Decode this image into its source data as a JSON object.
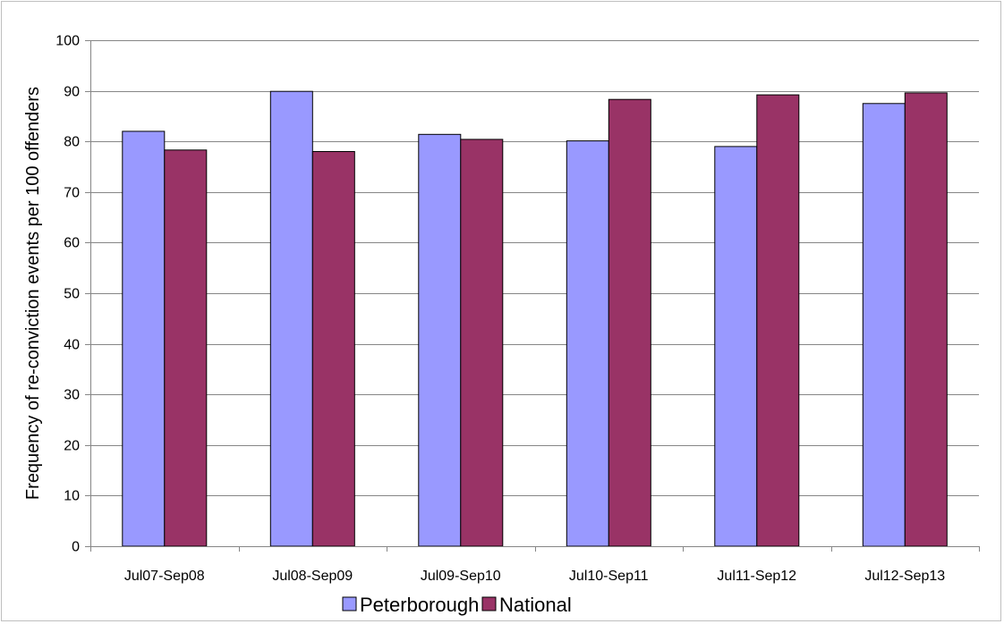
{
  "chart_data": {
    "type": "bar",
    "ylabel": "Frequency of re-conviction events per 100 offenders",
    "xlabel": "",
    "ylim": [
      0,
      100
    ],
    "yticks": [
      0,
      10,
      20,
      30,
      40,
      50,
      60,
      70,
      80,
      90,
      100
    ],
    "grid": true,
    "legend_position": "bottom",
    "categories": [
      "Jul07-Sep08",
      "Jul08-Sep09",
      "Jul09-Sep10",
      "Jul10-Sep11",
      "Jul11-Sep12",
      "Jul12-Sep13"
    ],
    "series": [
      {
        "name": "Peterborough",
        "color": "#9999ff",
        "values": [
          82.0,
          89.9,
          81.4,
          80.1,
          79.0,
          87.5
        ]
      },
      {
        "name": "National",
        "color": "#993366",
        "values": [
          78.3,
          78.0,
          80.4,
          88.3,
          89.2,
          89.6
        ]
      }
    ]
  }
}
